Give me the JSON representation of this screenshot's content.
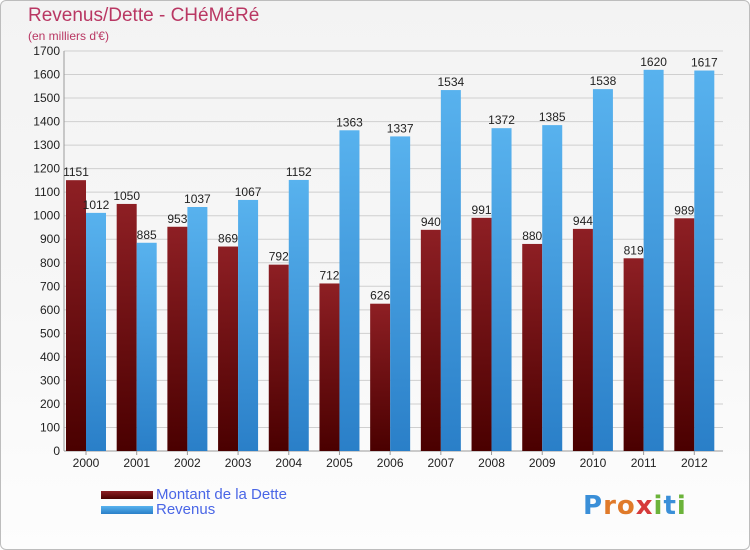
{
  "header": {
    "title": "Revenus/Dette - CHéMéRé",
    "subtitle": "(en milliers d'€)"
  },
  "colors": {
    "dette": "#8b1a1e",
    "dette_dark": "#5a0000",
    "revenus": "#4fa9e6",
    "revenus_dark": "#2f86cf",
    "grid": "#cfcfcf",
    "axis_text": "#222222"
  },
  "chart_data": {
    "type": "bar",
    "categories": [
      "2000",
      "2001",
      "2002",
      "2003",
      "2004",
      "2005",
      "2006",
      "2007",
      "2008",
      "2009",
      "2010",
      "2011",
      "2012"
    ],
    "series": [
      {
        "name": "Montant de la Dette",
        "values": [
          1151,
          1050,
          953,
          869,
          792,
          712,
          626,
          940,
          991,
          880,
          944,
          819,
          989
        ]
      },
      {
        "name": "Revenus",
        "values": [
          1012,
          885,
          1037,
          1067,
          1152,
          1363,
          1337,
          1534,
          1372,
          1385,
          1538,
          1620,
          1617
        ]
      }
    ],
    "ylim": [
      0,
      1700
    ],
    "yticks": [
      0,
      100,
      200,
      300,
      400,
      500,
      600,
      700,
      800,
      900,
      1000,
      1100,
      1200,
      1300,
      1400,
      1500,
      1600,
      1700
    ],
    "grid": true,
    "legend_position": "bottom-left"
  },
  "logo": {
    "letters": [
      {
        "ch": "P",
        "color": "#3a8fd8"
      },
      {
        "ch": "r",
        "color": "#e07a2a"
      },
      {
        "ch": "o",
        "color": "#e07a2a"
      },
      {
        "ch": "x",
        "color": "#d63a3a"
      },
      {
        "ch": "i",
        "color": "#6bb33a"
      },
      {
        "ch": "t",
        "color": "#3a8fd8"
      },
      {
        "ch": "i",
        "color": "#6bb33a"
      }
    ]
  }
}
